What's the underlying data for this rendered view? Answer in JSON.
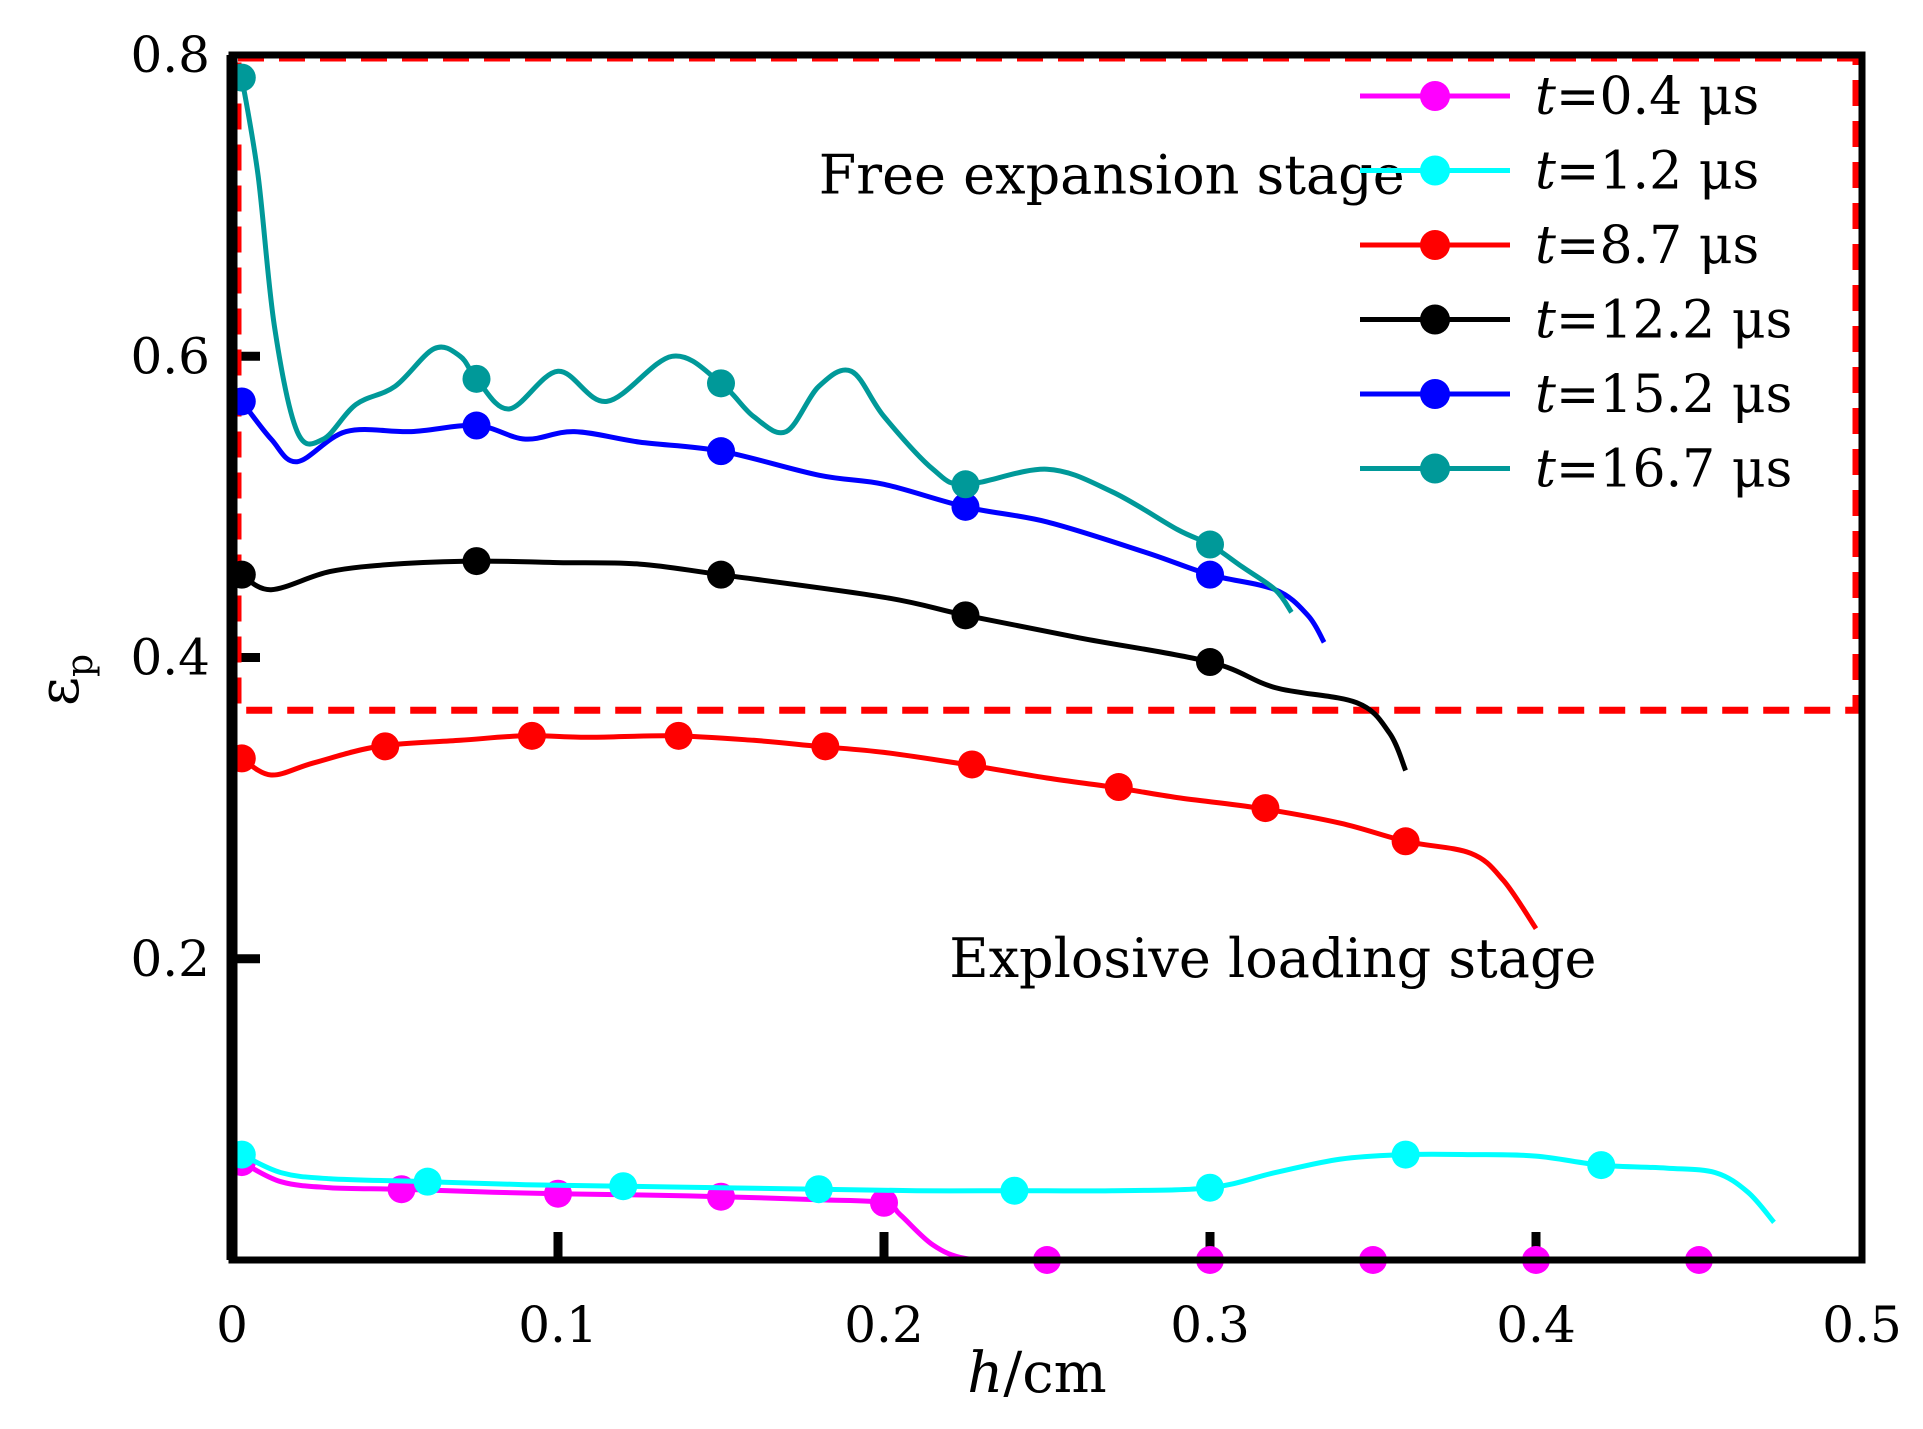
{
  "chart_data": {
    "type": "line",
    "xlabel_italic": "h",
    "xlabel_unit": "/cm",
    "ylabel_symbol": "ε",
    "ylabel_sub": "p",
    "xlim": [
      0,
      0.5
    ],
    "ylim": [
      0,
      0.8
    ],
    "x_ticks": [
      0,
      0.1,
      0.2,
      0.3,
      0.4,
      0.5
    ],
    "x_tick_labels": [
      "0",
      "0.1",
      "0.2",
      "0.3",
      "0.4",
      "0.5"
    ],
    "y_ticks": [
      0.2,
      0.4,
      0.6,
      0.8
    ],
    "y_tick_labels": [
      "0.2",
      "0.4",
      "0.6",
      "0.8"
    ],
    "grid": false,
    "legend_position": "top-right",
    "region": {
      "label": "Free expansion stage",
      "y_from": 0.365,
      "y_to": 0.8,
      "color": "#ff0000",
      "style": "dashed"
    },
    "annotations": [
      {
        "text": "Free expansion stage",
        "x": 0.18,
        "y": 0.72
      },
      {
        "text": "Explosive loading stage",
        "x": 0.22,
        "y": 0.2
      }
    ],
    "series": [
      {
        "name": "=0.4 μs",
        "name_italic": "t",
        "color": "#ff00ff",
        "x": [
          0.003,
          0.015,
          0.03,
          0.052,
          0.08,
          0.1,
          0.13,
          0.15,
          0.18,
          0.2,
          0.205,
          0.215,
          0.225,
          0.24
        ],
        "y": [
          0.065,
          0.052,
          0.048,
          0.047,
          0.045,
          0.044,
          0.043,
          0.042,
          0.04,
          0.038,
          0.03,
          0.01,
          0.001,
          0.0
        ],
        "markers_x": [
          0.003,
          0.052,
          0.1,
          0.15,
          0.2,
          0.25,
          0.3,
          0.35,
          0.4,
          0.45
        ],
        "markers_y": [
          0.065,
          0.047,
          0.044,
          0.042,
          0.038,
          0.0,
          0.0,
          0.0,
          0.0,
          0.0
        ]
      },
      {
        "name": "=1.2 μs",
        "name_italic": "t",
        "color": "#00ffff",
        "x": [
          0.003,
          0.015,
          0.03,
          0.06,
          0.09,
          0.12,
          0.15,
          0.18,
          0.21,
          0.24,
          0.27,
          0.3,
          0.32,
          0.34,
          0.36,
          0.38,
          0.4,
          0.42,
          0.44,
          0.455,
          0.465,
          0.473
        ],
        "y": [
          0.07,
          0.058,
          0.054,
          0.052,
          0.05,
          0.049,
          0.048,
          0.047,
          0.046,
          0.046,
          0.046,
          0.048,
          0.058,
          0.067,
          0.07,
          0.07,
          0.069,
          0.063,
          0.061,
          0.058,
          0.045,
          0.025
        ],
        "markers_x": [
          0.003,
          0.06,
          0.12,
          0.18,
          0.24,
          0.3,
          0.36,
          0.42
        ],
        "markers_y": [
          0.07,
          0.052,
          0.049,
          0.047,
          0.046,
          0.048,
          0.07,
          0.063
        ]
      },
      {
        "name": "=8.7 μs",
        "name_italic": "t",
        "color": "#ff0000",
        "x": [
          0.003,
          0.012,
          0.025,
          0.045,
          0.07,
          0.09,
          0.11,
          0.135,
          0.16,
          0.18,
          0.2,
          0.225,
          0.25,
          0.27,
          0.29,
          0.315,
          0.34,
          0.36,
          0.38,
          0.39,
          0.4
        ],
        "y": [
          0.333,
          0.322,
          0.33,
          0.341,
          0.345,
          0.348,
          0.347,
          0.348,
          0.345,
          0.341,
          0.337,
          0.329,
          0.32,
          0.314,
          0.307,
          0.3,
          0.29,
          0.278,
          0.27,
          0.252,
          0.22
        ],
        "markers_x": [
          0.003,
          0.047,
          0.092,
          0.137,
          0.182,
          0.227,
          0.272,
          0.317,
          0.36
        ],
        "markers_y": [
          0.333,
          0.341,
          0.348,
          0.348,
          0.341,
          0.329,
          0.314,
          0.3,
          0.278
        ]
      },
      {
        "name": "=12.2 μs",
        "name_italic": "t",
        "color": "#000000",
        "x": [
          0.003,
          0.012,
          0.03,
          0.05,
          0.075,
          0.1,
          0.125,
          0.15,
          0.2,
          0.225,
          0.26,
          0.3,
          0.32,
          0.345,
          0.355,
          0.36
        ],
        "y": [
          0.455,
          0.445,
          0.457,
          0.462,
          0.464,
          0.463,
          0.462,
          0.455,
          0.44,
          0.428,
          0.413,
          0.397,
          0.38,
          0.37,
          0.35,
          0.325
        ],
        "markers_x": [
          0.003,
          0.075,
          0.15,
          0.225,
          0.3
        ],
        "markers_y": [
          0.455,
          0.464,
          0.455,
          0.428,
          0.397
        ]
      },
      {
        "name": "=15.2 μs",
        "name_italic": "t",
        "color": "#0000ff",
        "x": [
          0.003,
          0.012,
          0.02,
          0.035,
          0.055,
          0.075,
          0.09,
          0.105,
          0.125,
          0.15,
          0.18,
          0.2,
          0.225,
          0.25,
          0.28,
          0.3,
          0.32,
          0.33,
          0.335
        ],
        "y": [
          0.57,
          0.545,
          0.53,
          0.55,
          0.55,
          0.554,
          0.545,
          0.55,
          0.543,
          0.537,
          0.521,
          0.515,
          0.5,
          0.49,
          0.47,
          0.455,
          0.445,
          0.428,
          0.41
        ],
        "markers_x": [
          0.003,
          0.075,
          0.15,
          0.225,
          0.3
        ],
        "markers_y": [
          0.57,
          0.554,
          0.537,
          0.5,
          0.455
        ]
      },
      {
        "name": "=16.7 μs",
        "name_italic": "t",
        "color": "#009999",
        "x": [
          0.003,
          0.008,
          0.013,
          0.02,
          0.028,
          0.038,
          0.05,
          0.062,
          0.07,
          0.075,
          0.085,
          0.1,
          0.115,
          0.135,
          0.15,
          0.16,
          0.17,
          0.18,
          0.19,
          0.2,
          0.215,
          0.225,
          0.25,
          0.27,
          0.29,
          0.3,
          0.31,
          0.32,
          0.325
        ],
        "y": [
          0.785,
          0.72,
          0.62,
          0.55,
          0.545,
          0.568,
          0.58,
          0.605,
          0.6,
          0.585,
          0.565,
          0.59,
          0.57,
          0.6,
          0.582,
          0.56,
          0.55,
          0.58,
          0.59,
          0.56,
          0.525,
          0.515,
          0.525,
          0.51,
          0.485,
          0.475,
          0.46,
          0.445,
          0.43
        ],
        "markers_x": [
          0.003,
          0.075,
          0.15,
          0.225,
          0.3
        ],
        "markers_y": [
          0.785,
          0.585,
          0.582,
          0.515,
          0.475
        ]
      }
    ]
  }
}
